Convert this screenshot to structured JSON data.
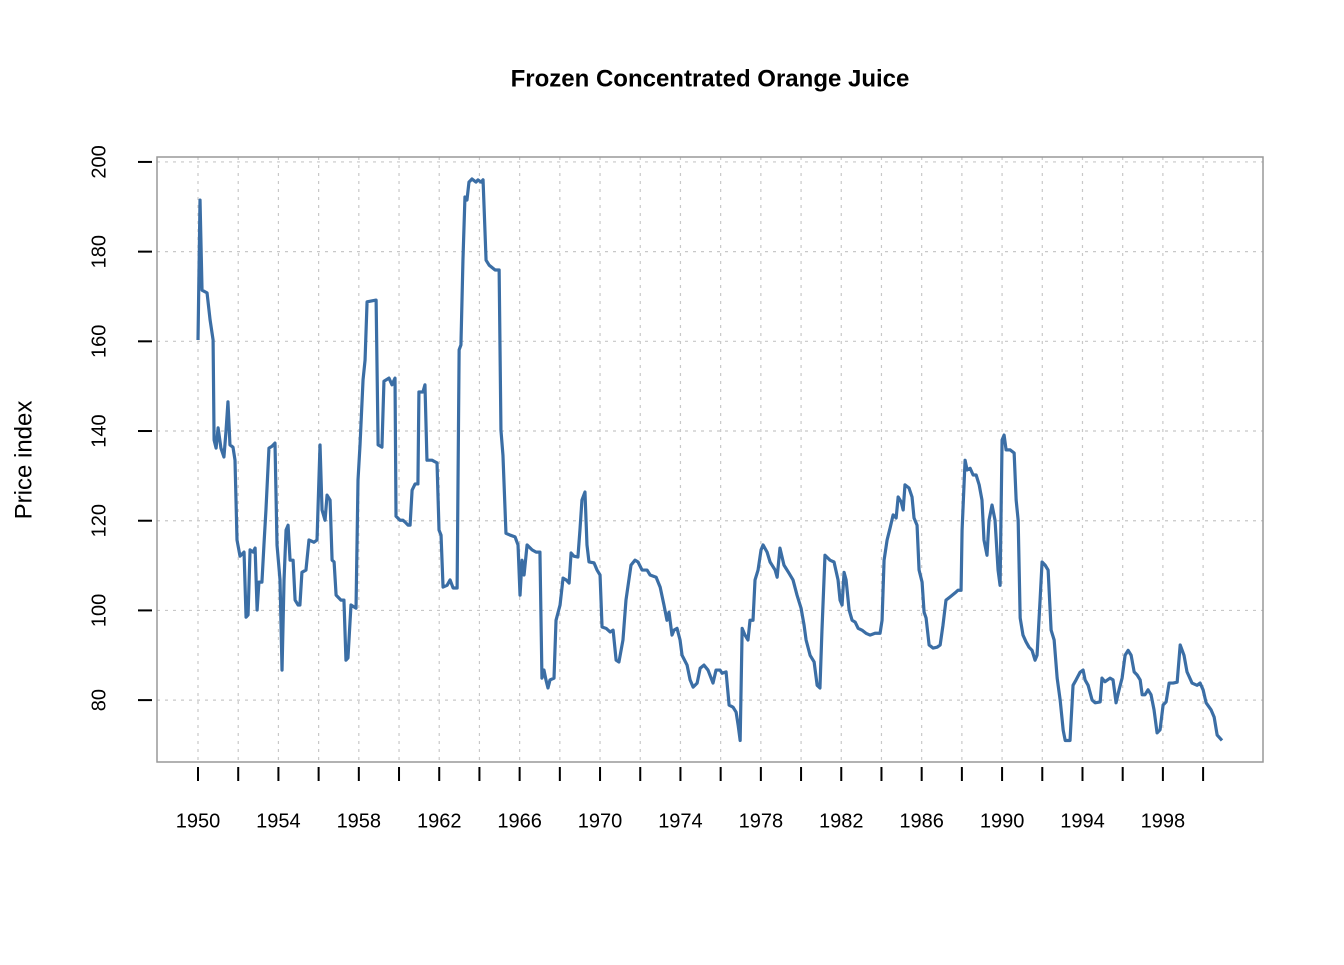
{
  "chart_data": {
    "type": "line",
    "title": "Frozen Concentrated Orange Juice",
    "y_label": "Price index",
    "x": [
      1950.0,
      1950.1,
      1950.2,
      1950.45,
      1950.6,
      1950.75,
      1950.8,
      1950.9,
      1951.0,
      1951.14,
      1951.29,
      1951.39,
      1951.49,
      1951.59,
      1951.74,
      1951.84,
      1951.94,
      1952.09,
      1952.29,
      1952.39,
      1952.49,
      1952.59,
      1952.74,
      1952.84,
      1952.94,
      1953.03,
      1953.18,
      1953.28,
      1953.38,
      1953.53,
      1953.68,
      1953.83,
      1953.93,
      1954.08,
      1954.18,
      1954.28,
      1954.38,
      1954.48,
      1954.58,
      1954.73,
      1954.83,
      1954.98,
      1955.07,
      1955.17,
      1955.37,
      1955.52,
      1955.77,
      1955.92,
      1956.07,
      1956.17,
      1956.32,
      1956.42,
      1956.57,
      1956.67,
      1956.77,
      1956.87,
      1957.11,
      1957.26,
      1957.36,
      1957.46,
      1957.61,
      1957.86,
      1957.96,
      1958.06,
      1958.21,
      1958.31,
      1958.41,
      1958.86,
      1958.96,
      1959.15,
      1959.25,
      1959.5,
      1959.65,
      1959.8,
      1959.85,
      1960.05,
      1960.2,
      1960.3,
      1960.45,
      1960.55,
      1960.65,
      1960.8,
      1960.94,
      1960.99,
      1961.19,
      1961.29,
      1961.39,
      1961.64,
      1961.89,
      1961.99,
      1962.09,
      1962.19,
      1962.39,
      1962.54,
      1962.69,
      1962.89,
      1962.99,
      1963.08,
      1963.18,
      1963.28,
      1963.38,
      1963.48,
      1963.63,
      1963.83,
      1963.93,
      1964.08,
      1964.18,
      1964.33,
      1964.48,
      1964.78,
      1964.98,
      1965.07,
      1965.17,
      1965.32,
      1965.52,
      1965.77,
      1965.92,
      1966.02,
      1966.12,
      1966.22,
      1966.37,
      1966.62,
      1966.82,
      1967.01,
      1967.11,
      1967.21,
      1967.31,
      1967.41,
      1967.51,
      1967.71,
      1967.81,
      1968.01,
      1968.16,
      1968.31,
      1968.46,
      1968.56,
      1968.7,
      1968.9,
      1969.0,
      1969.1,
      1969.25,
      1969.35,
      1969.45,
      1969.7,
      1969.85,
      1970.0,
      1970.1,
      1970.3,
      1970.5,
      1970.65,
      1970.8,
      1970.94,
      1971.14,
      1971.29,
      1971.54,
      1971.74,
      1971.89,
      1972.09,
      1972.34,
      1972.49,
      1972.79,
      1972.99,
      1973.18,
      1973.33,
      1973.43,
      1973.58,
      1973.68,
      1973.83,
      1973.98,
      1974.08,
      1974.33,
      1974.48,
      1974.63,
      1974.83,
      1974.98,
      1975.17,
      1975.37,
      1975.62,
      1975.77,
      1975.97,
      1976.07,
      1976.27,
      1976.42,
      1976.62,
      1976.77,
      1976.87,
      1976.97,
      1977.07,
      1977.21,
      1977.36,
      1977.46,
      1977.61,
      1977.71,
      1977.86,
      1978.01,
      1978.11,
      1978.31,
      1978.46,
      1978.71,
      1978.81,
      1978.95,
      1979.15,
      1979.4,
      1979.6,
      1979.8,
      1980.0,
      1980.15,
      1980.25,
      1980.45,
      1980.65,
      1980.8,
      1980.94,
      1981.04,
      1981.19,
      1981.44,
      1981.64,
      1981.84,
      1981.94,
      1982.04,
      1982.14,
      1982.24,
      1982.39,
      1982.54,
      1982.69,
      1982.84,
      1983.03,
      1983.23,
      1983.43,
      1983.68,
      1983.93,
      1984.03,
      1984.13,
      1984.28,
      1984.43,
      1984.58,
      1984.73,
      1984.83,
      1984.98,
      1985.08,
      1985.17,
      1985.37,
      1985.52,
      1985.62,
      1985.77,
      1985.87,
      1986.02,
      1986.12,
      1986.22,
      1986.37,
      1986.57,
      1986.77,
      1986.92,
      1987.06,
      1987.21,
      1987.41,
      1987.66,
      1987.81,
      1987.96,
      1988.01,
      1988.16,
      1988.26,
      1988.41,
      1988.56,
      1988.71,
      1988.86,
      1989.0,
      1989.1,
      1989.25,
      1989.35,
      1989.5,
      1989.65,
      1989.8,
      1989.9,
      1990.0,
      1990.1,
      1990.2,
      1990.4,
      1990.6,
      1990.7,
      1990.8,
      1990.9,
      1991.04,
      1991.19,
      1991.34,
      1991.49,
      1991.64,
      1991.74,
      1991.89,
      1991.99,
      1992.14,
      1992.29,
      1992.44,
      1992.59,
      1992.74,
      1992.89,
      1993.04,
      1993.14,
      1993.38,
      1993.53,
      1993.68,
      1993.88,
      1994.03,
      1994.13,
      1994.28,
      1994.48,
      1994.63,
      1994.88,
      1994.97,
      1995.12,
      1995.37,
      1995.52,
      1995.67,
      1995.82,
      1995.97,
      1996.12,
      1996.27,
      1996.42,
      1996.57,
      1996.72,
      1996.87,
      1996.97,
      1997.11,
      1997.26,
      1997.41,
      1997.56,
      1997.71,
      1997.86,
      1998.01,
      1998.16,
      1998.31,
      1998.51,
      1998.71,
      1998.86,
      1999.05,
      1999.2,
      1999.45,
      1999.7,
      1999.85,
      2000.0,
      2000.15,
      2000.4,
      2000.55,
      2000.7,
      2000.94
    ],
    "series": [
      {
        "color": "#3b6ea5",
        "values": [
          160.3,
          191.5,
          171.4,
          170.8,
          164.8,
          160.3,
          138.0,
          136.2,
          140.7,
          136.2,
          134.2,
          139.8,
          146.5,
          136.9,
          136.4,
          133.5,
          115.7,
          112.1,
          113.0,
          98.5,
          99.0,
          113.5,
          113.0,
          113.9,
          100.1,
          106.3,
          106.3,
          114.6,
          122.4,
          136.2,
          136.6,
          137.3,
          114.6,
          106.8,
          86.7,
          106.8,
          117.9,
          119.0,
          111.2,
          111.2,
          102.3,
          101.2,
          101.2,
          108.5,
          109.0,
          115.7,
          115.2,
          115.7,
          136.9,
          122.4,
          120.1,
          125.7,
          124.6,
          111.2,
          110.8,
          103.4,
          102.3,
          102.3,
          88.9,
          89.4,
          101.2,
          100.5,
          129.1,
          136.9,
          151.4,
          155.8,
          168.8,
          169.2,
          136.9,
          136.4,
          151.1,
          151.8,
          150.3,
          151.8,
          121.0,
          120.1,
          120.1,
          119.7,
          119.0,
          119.0,
          126.8,
          128.2,
          128.2,
          148.7,
          148.7,
          150.3,
          133.5,
          133.5,
          132.9,
          117.9,
          116.8,
          105.2,
          105.6,
          106.8,
          105.0,
          105.0,
          158.1,
          159.2,
          178.1,
          192.2,
          191.5,
          195.5,
          196.2,
          195.5,
          196.0,
          195.5,
          196.0,
          178.1,
          177.0,
          175.9,
          175.9,
          140.2,
          134.6,
          117.2,
          116.8,
          116.4,
          114.6,
          103.4,
          111.2,
          107.9,
          114.6,
          113.5,
          113.0,
          113.0,
          84.9,
          86.7,
          84.5,
          82.7,
          84.5,
          84.9,
          97.8,
          101.2,
          107.2,
          106.8,
          106.1,
          112.8,
          112.1,
          111.9,
          117.9,
          124.6,
          126.4,
          114.6,
          110.8,
          110.6,
          109.0,
          107.9,
          96.3,
          96.0,
          95.2,
          95.6,
          88.9,
          88.5,
          93.4,
          102.3,
          110.1,
          111.2,
          110.8,
          109.0,
          109.0,
          107.9,
          107.4,
          105.2,
          101.2,
          97.8,
          99.6,
          94.5,
          95.6,
          96.0,
          93.4,
          90.0,
          87.8,
          84.5,
          82.9,
          83.8,
          87.1,
          87.8,
          86.7,
          83.8,
          86.7,
          86.7,
          86.0,
          86.3,
          78.9,
          78.4,
          77.3,
          74.4,
          71.0,
          96.0,
          94.5,
          93.4,
          97.8,
          97.8,
          106.8,
          109.0,
          113.5,
          114.6,
          113.0,
          110.8,
          109.0,
          107.4,
          113.9,
          110.1,
          108.3,
          106.8,
          103.4,
          100.5,
          96.7,
          93.4,
          90.0,
          88.5,
          83.3,
          82.7,
          95.6,
          112.3,
          111.2,
          110.8,
          106.8,
          102.3,
          101.2,
          108.5,
          106.8,
          100.1,
          97.8,
          97.4,
          96.0,
          95.6,
          94.9,
          94.5,
          94.9,
          94.9,
          97.8,
          111.2,
          115.7,
          118.4,
          121.3,
          120.6,
          125.3,
          124.2,
          122.4,
          128.0,
          127.3,
          125.3,
          120.6,
          119.0,
          109.0,
          106.3,
          99.6,
          98.3,
          92.3,
          91.6,
          91.8,
          92.3,
          96.7,
          102.3,
          103.0,
          103.9,
          104.5,
          104.5,
          117.9,
          133.5,
          131.3,
          131.7,
          130.2,
          130.2,
          128.0,
          124.6,
          115.7,
          112.3,
          120.1,
          123.5,
          120.1,
          109.0,
          105.6,
          138.0,
          139.1,
          135.8,
          135.8,
          135.1,
          124.6,
          120.1,
          98.3,
          94.5,
          93.0,
          91.8,
          91.1,
          88.9,
          90.0,
          102.3,
          110.8,
          110.1,
          109.0,
          95.6,
          93.4,
          84.9,
          80.0,
          73.3,
          71.0,
          71.0,
          83.3,
          84.5,
          86.2,
          86.7,
          84.5,
          83.3,
          80.0,
          79.4,
          79.6,
          84.9,
          84.1,
          84.9,
          84.5,
          79.4,
          82.3,
          84.9,
          90.0,
          91.1,
          90.0,
          86.3,
          85.6,
          84.5,
          81.2,
          81.2,
          82.3,
          81.2,
          77.8,
          72.7,
          73.4,
          78.9,
          79.6,
          83.8,
          83.8,
          84.0,
          92.3,
          90.0,
          86.3,
          83.8,
          83.3,
          83.8,
          82.3,
          79.4,
          77.8,
          76.2,
          72.2,
          71.0
        ]
      }
    ],
    "xlim": [
      1947.96,
      2002.98
    ],
    "ylim": [
      66.2,
      201.1
    ],
    "xticks": [
      1950,
      1954,
      1958,
      1962,
      1966,
      1970,
      1974,
      1978,
      1982,
      1986,
      1990,
      1994,
      1998
    ],
    "xminorticks": [
      1952,
      1956,
      1960,
      1964,
      1968,
      1972,
      1976,
      1980,
      1984,
      1988,
      1992,
      1996,
      2000
    ],
    "yticks": [
      80,
      100,
      120,
      140,
      160,
      180,
      200
    ],
    "grid": true
  }
}
